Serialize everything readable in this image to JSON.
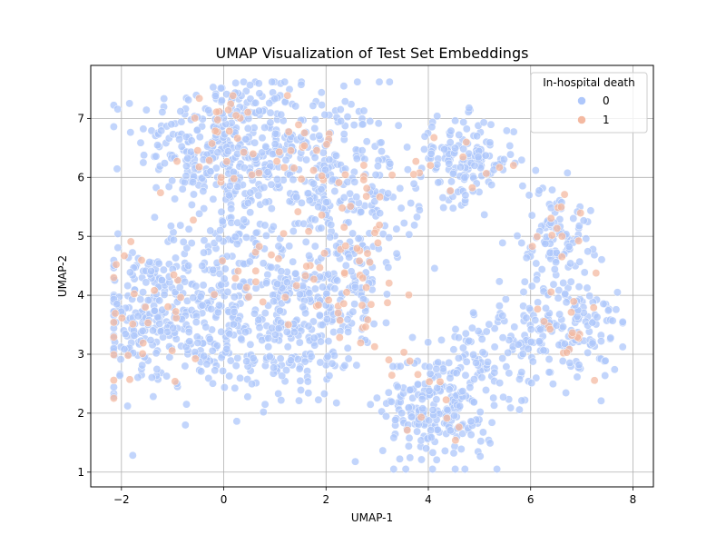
{
  "chart_data": {
    "type": "scatter",
    "title": "UMAP Visualization of Test Set Embeddings",
    "xlabel": "UMAP-1",
    "ylabel": "UMAP-2",
    "xlim": [
      -2.6,
      8.4
    ],
    "ylim": [
      0.75,
      7.9
    ],
    "xticks": [
      -2,
      0,
      2,
      4,
      6,
      8
    ],
    "yticks": [
      1,
      2,
      3,
      4,
      5,
      6,
      7
    ],
    "grid": true,
    "legend": {
      "title": "In-hospital death",
      "position": "top-right"
    },
    "series": [
      {
        "name": "0",
        "color": "#aec7fb",
        "clusters": [
          {
            "cx": -0.1,
            "cy": 6.6,
            "sx": 0.8,
            "sy": 0.55,
            "n": 260
          },
          {
            "cx": 1.3,
            "cy": 6.3,
            "sx": 0.9,
            "sy": 0.7,
            "n": 220
          },
          {
            "cx": 2.6,
            "cy": 5.7,
            "sx": 0.6,
            "sy": 0.6,
            "n": 120
          },
          {
            "cx": -1.5,
            "cy": 3.6,
            "sx": 0.55,
            "sy": 0.6,
            "n": 200
          },
          {
            "cx": -0.3,
            "cy": 3.7,
            "sx": 0.6,
            "sy": 0.7,
            "n": 160
          },
          {
            "cx": 1.2,
            "cy": 3.3,
            "sx": 0.7,
            "sy": 0.6,
            "n": 180
          },
          {
            "cx": 2.2,
            "cy": 4.2,
            "sx": 0.6,
            "sy": 0.6,
            "n": 150
          },
          {
            "cx": 4.7,
            "cy": 6.3,
            "sx": 0.5,
            "sy": 0.35,
            "n": 140
          },
          {
            "cx": 4.2,
            "cy": 2.1,
            "sx": 0.55,
            "sy": 0.5,
            "n": 230
          },
          {
            "cx": 6.5,
            "cy": 5.0,
            "sx": 0.35,
            "sy": 0.45,
            "n": 100
          },
          {
            "cx": 6.6,
            "cy": 3.4,
            "sx": 0.6,
            "sy": 0.45,
            "n": 170
          },
          {
            "cx": 5.2,
            "cy": 3.0,
            "sx": 0.5,
            "sy": 0.4,
            "n": 60
          },
          {
            "cx": 0.3,
            "cy": 5.0,
            "sx": 0.7,
            "sy": 0.5,
            "n": 80
          }
        ]
      },
      {
        "name": "1",
        "color": "#f4b9a1",
        "clusters": [
          {
            "cx": -0.2,
            "cy": 6.6,
            "sx": 0.6,
            "sy": 0.5,
            "n": 30
          },
          {
            "cx": 1.6,
            "cy": 6.2,
            "sx": 0.8,
            "sy": 0.5,
            "n": 25
          },
          {
            "cx": -1.5,
            "cy": 3.6,
            "sx": 0.5,
            "sy": 0.6,
            "n": 30
          },
          {
            "cx": 2.6,
            "cy": 4.2,
            "sx": 0.6,
            "sy": 0.6,
            "n": 45
          },
          {
            "cx": 0.6,
            "cy": 4.5,
            "sx": 0.7,
            "sy": 0.5,
            "n": 15
          },
          {
            "cx": 4.6,
            "cy": 6.2,
            "sx": 0.5,
            "sy": 0.3,
            "n": 12
          },
          {
            "cx": 6.5,
            "cy": 4.8,
            "sx": 0.3,
            "sy": 0.5,
            "n": 15
          },
          {
            "cx": 6.7,
            "cy": 3.3,
            "sx": 0.5,
            "sy": 0.4,
            "n": 15
          },
          {
            "cx": 4.1,
            "cy": 2.2,
            "sx": 0.5,
            "sy": 0.5,
            "n": 10
          },
          {
            "cx": 3.0,
            "cy": 5.6,
            "sx": 0.4,
            "sy": 0.5,
            "n": 10
          }
        ]
      }
    ]
  }
}
